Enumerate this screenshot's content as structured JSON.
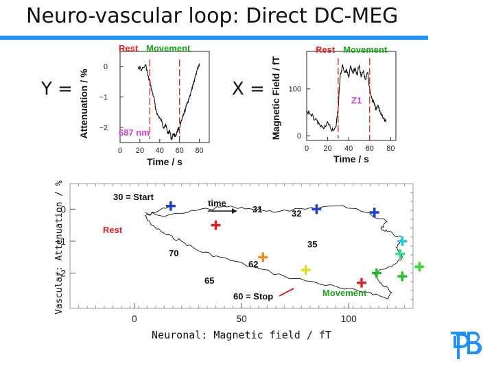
{
  "slide": {
    "title": "Neuro-vascular loop: Direct DC-MEG",
    "y_eq": "Y =",
    "x_eq": "X ="
  },
  "colors": {
    "accent_rule": "#1e90ff",
    "trace": "#111111",
    "rest_label": "#dd2222",
    "movement_label": "#1aa51a",
    "highlight_label": "#d040d0",
    "marker_start": "#1c3fd0",
    "logo": "#1e90ff"
  },
  "logo": {
    "text": "PTB"
  },
  "chart_data": [
    {
      "type": "line",
      "xlabel": "Time / s",
      "ylabel": "Attenuation / %",
      "xlim": [
        0,
        90
      ],
      "ylim": [
        -2.5,
        0.5
      ],
      "x_ticks": [
        "0",
        "20",
        "40",
        "60",
        "80"
      ],
      "y_ticks": [
        "0",
        "−1",
        "−2"
      ],
      "legend": [
        "Rest",
        "Movement"
      ],
      "period_lines_x": [
        30,
        60
      ],
      "annotation": "687 nm",
      "x": [
        18,
        22,
        26,
        28,
        30,
        32,
        34,
        36,
        38,
        40,
        42,
        44,
        46,
        48,
        50,
        52,
        54,
        56,
        58,
        60,
        62,
        64,
        66,
        68,
        70,
        72,
        74,
        76,
        78,
        80
      ],
      "y": [
        0.0,
        -0.1,
        0.05,
        -0.3,
        -0.5,
        -0.8,
        -1.0,
        -1.4,
        -1.6,
        -1.7,
        -1.8,
        -2.0,
        -1.9,
        -2.2,
        -2.1,
        -2.4,
        -2.2,
        -2.3,
        -2.1,
        -2.0,
        -1.8,
        -1.6,
        -1.4,
        -1.2,
        -1.0,
        -0.8,
        -0.6,
        -0.3,
        -0.1,
        0.1
      ]
    },
    {
      "type": "line",
      "xlabel": "Time / s",
      "ylabel": "Magnetic Field / fT",
      "xlim": [
        0,
        85
      ],
      "ylim": [
        -10,
        180
      ],
      "x_ticks": [
        "0",
        "20",
        "40",
        "60",
        "80"
      ],
      "y_ticks": [
        "100",
        "0"
      ],
      "legend": [
        "Rest",
        "Movement"
      ],
      "period_lines_x": [
        30,
        60
      ],
      "annotation": "Z1",
      "x": [
        0,
        4,
        8,
        12,
        16,
        20,
        24,
        28,
        30,
        32,
        34,
        36,
        38,
        40,
        42,
        44,
        46,
        48,
        50,
        52,
        54,
        56,
        58,
        60,
        62,
        64,
        66,
        68,
        70,
        72,
        74,
        76
      ],
      "y": [
        55,
        45,
        35,
        25,
        15,
        30,
        10,
        20,
        60,
        130,
        150,
        135,
        140,
        125,
        150,
        135,
        145,
        130,
        150,
        125,
        140,
        120,
        135,
        100,
        80,
        70,
        55,
        65,
        50,
        45,
        35,
        30
      ]
    },
    {
      "type": "line",
      "xlabel": "Neuronal: Magnetic field / fT",
      "ylabel": "Vascular: Attenuation / %",
      "xlim": [
        -30,
        130
      ],
      "ylim": [
        -3.1,
        0.8
      ],
      "x_ticks": [
        "0",
        "50",
        "100"
      ],
      "y_ticks": [
        "0",
        "−1",
        "−2"
      ],
      "annotations": [
        "30 = Start",
        "time",
        "31",
        "32",
        "35",
        "62",
        "65",
        "70",
        "60 = Stop",
        "Rest",
        "Movement"
      ],
      "trajectory_x": [
        17,
        10,
        5,
        8,
        15,
        22,
        30,
        40,
        55,
        70,
        85,
        98,
        110,
        118,
        120,
        115,
        112,
        120,
        125,
        122,
        125,
        118,
        115,
        118,
        108,
        95,
        80,
        65,
        55,
        45,
        35,
        25,
        12,
        5
      ],
      "trajectory_y": [
        0.1,
        -0.1,
        -0.2,
        -0.5,
        -0.8,
        -1.0,
        -1.3,
        -1.5,
        -1.8,
        -2.1,
        -2.3,
        -2.5,
        -2.6,
        -2.8,
        -2.6,
        -2.3,
        -2.0,
        -1.8,
        -1.5,
        -1.2,
        -0.9,
        -0.7,
        -0.6,
        -0.4,
        -0.1,
        0.1,
        0.0,
        -0.1,
        0.0,
        0.1,
        0.0,
        -0.1,
        -0.2,
        -0.1
      ],
      "markers": [
        {
          "label": "30 = Start",
          "x": 17,
          "y": 0.1,
          "color": "#1c3fd0"
        },
        {
          "label": "31",
          "x": 85,
          "y": 0.0,
          "color": "#1c3fd0"
        },
        {
          "label": "32",
          "x": 112,
          "y": -0.1,
          "color": "#1c3fd0"
        },
        {
          "label": "35",
          "x": 125,
          "y": -1.0,
          "color": "#22c8e0"
        },
        {
          "label": "",
          "x": 124,
          "y": -1.4,
          "color": "#33dd88"
        },
        {
          "label": "",
          "x": 133,
          "y": -1.8,
          "color": "#33dd33"
        },
        {
          "label": "",
          "x": 125,
          "y": -2.1,
          "color": "#22bb22"
        },
        {
          "label": "",
          "x": 113,
          "y": -2.0,
          "color": "#22bb22"
        },
        {
          "label": "60 = Stop",
          "x": 106,
          "y": -2.3,
          "color": "#dd2222"
        },
        {
          "label": "62",
          "x": 80,
          "y": -1.9,
          "color": "#dddd22"
        },
        {
          "label": "65",
          "x": 60,
          "y": -1.5,
          "color": "#f08a24"
        },
        {
          "label": "70",
          "x": 38,
          "y": -0.5,
          "color": "#e0201a"
        }
      ]
    }
  ]
}
